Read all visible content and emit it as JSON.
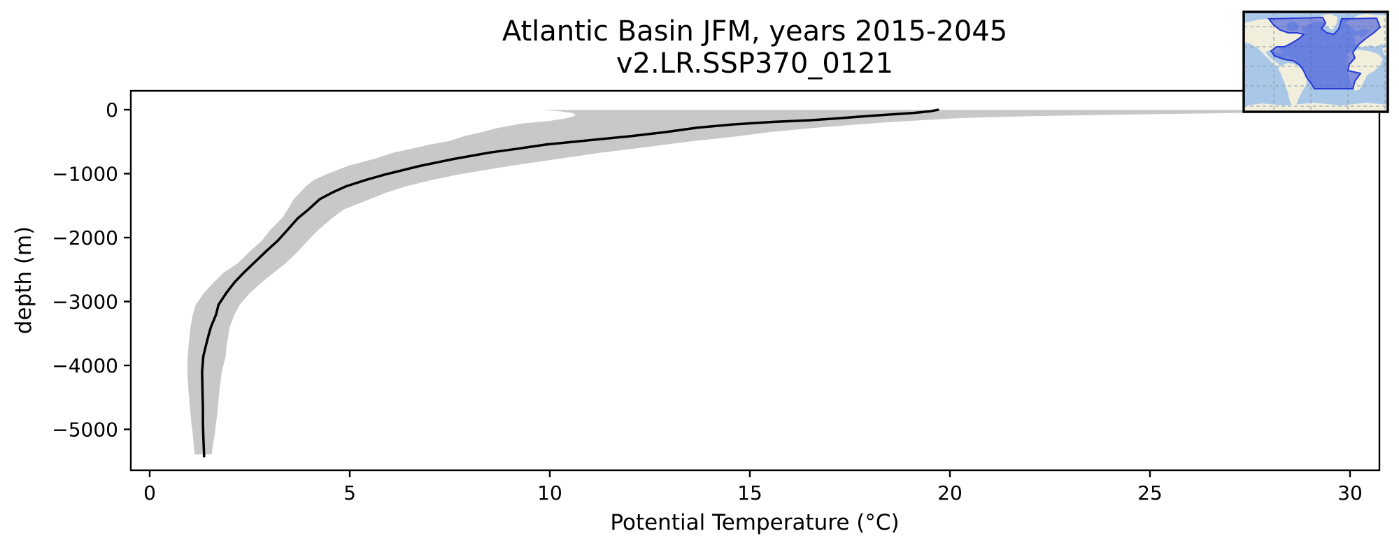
{
  "figure": {
    "title_line1": "Atlantic Basin JFM, years 2015-2045",
    "title_line2": "v2.LR.SSP370_0121"
  },
  "axes": {
    "x": {
      "label": "Potential Temperature (°C)",
      "tick_values": [
        0,
        5,
        10,
        15,
        20,
        25,
        30
      ],
      "tick_labels": [
        "0",
        "5",
        "10",
        "15",
        "20",
        "25",
        "30"
      ],
      "range": [
        -0.5,
        30.73
      ]
    },
    "y": {
      "label": "depth (m)",
      "tick_values": [
        0,
        -1000,
        -2000,
        -3000,
        -4000,
        -5000
      ],
      "tick_labels": [
        "0",
        "−1000",
        "−2000",
        "−3000",
        "−4000",
        "−5000"
      ],
      "range": [
        -5640,
        295
      ]
    }
  },
  "chart_data": {
    "type": "line",
    "title": "Atlantic Basin JFM, years 2015-2045",
    "subtitle": "v2.LR.SSP370_0121",
    "xlabel": "Potential Temperature (°C)",
    "ylabel": "depth (m)",
    "xlim": [
      -0.5,
      30.73
    ],
    "ylim": [
      -5640,
      295
    ],
    "grid": false,
    "legend": "none",
    "series": [
      {
        "name": "basin-mean potential temperature profile",
        "color": "#000000",
        "line_width": 3.5,
        "depth_m": [
          -2,
          -25,
          -50,
          -75,
          -100,
          -135,
          -165,
          -190,
          -230,
          -280,
          -350,
          -415,
          -490,
          -545,
          -610,
          -670,
          -770,
          -880,
          -1015,
          -1100,
          -1200,
          -1300,
          -1400,
          -1560,
          -1700,
          -1890,
          -2050,
          -2220,
          -2400,
          -2550,
          -2700,
          -2870,
          -3050,
          -3200,
          -3400,
          -3530,
          -3700,
          -3860,
          -4100,
          -4400,
          -4700,
          -4900,
          -5100,
          -5250,
          -5420
        ],
        "temperature_c": [
          19.7,
          19.5,
          19.1,
          18.5,
          17.9,
          17.2,
          16.5,
          15.6,
          14.6,
          13.7,
          12.9,
          12.0,
          10.8,
          9.9,
          9.2,
          8.5,
          7.6,
          6.75,
          5.87,
          5.4,
          4.9,
          4.55,
          4.25,
          3.97,
          3.7,
          3.43,
          3.2,
          2.9,
          2.6,
          2.35,
          2.12,
          1.91,
          1.72,
          1.66,
          1.53,
          1.47,
          1.4,
          1.34,
          1.31,
          1.32,
          1.33,
          1.33,
          1.34,
          1.35,
          1.36
        ]
      }
    ],
    "band": {
      "name": "min-max spread across basin",
      "color": "#c8c8c8",
      "depth_m": [
        -2,
        -25,
        -50,
        -75,
        -100,
        -130,
        -175,
        -215,
        -285,
        -350,
        -415,
        -490,
        -545,
        -610,
        -670,
        -770,
        -880,
        -1015,
        -1100,
        -1200,
        -1300,
        -1400,
        -1560,
        -1700,
        -1890,
        -2050,
        -2220,
        -2400,
        -2550,
        -2700,
        -2870,
        -3050,
        -3200,
        -3400,
        -3700,
        -3860,
        -4100,
        -4400,
        -4700,
        -4900,
        -5100,
        -5250,
        -5390
      ],
      "temp_min_c": [
        9.8,
        10.25,
        10.55,
        10.65,
        10.6,
        10.45,
        10.0,
        9.3,
        8.7,
        8.3,
        7.85,
        7.5,
        7.0,
        6.55,
        6.1,
        5.6,
        4.95,
        4.4,
        4.1,
        3.9,
        3.75,
        3.6,
        3.45,
        3.3,
        3.0,
        2.8,
        2.5,
        2.2,
        1.85,
        1.6,
        1.35,
        1.15,
        1.08,
        1.02,
        0.97,
        0.95,
        0.94,
        0.97,
        1.01,
        1.04,
        1.08,
        1.1,
        1.12
      ],
      "temp_max_c": [
        30.4,
        29.6,
        27.3,
        24.5,
        22.0,
        20.3,
        19.0,
        18.0,
        16.6,
        15.5,
        14.7,
        13.6,
        12.9,
        12.1,
        11.3,
        10.2,
        9.0,
        7.7,
        7.05,
        6.4,
        5.9,
        5.5,
        4.85,
        4.55,
        4.2,
        3.95,
        3.7,
        3.4,
        3.1,
        2.8,
        2.5,
        2.25,
        2.12,
        2.0,
        1.92,
        1.9,
        1.8,
        1.74,
        1.7,
        1.66,
        1.62,
        1.58,
        1.55
      ]
    }
  },
  "inset_map": {
    "name": "Atlantic Basin region locator map",
    "ocean_color": "#a9c8e8",
    "land_color": "#f1eedc",
    "region_fill": "#3d52d8",
    "region_opacity": 0.6,
    "region_stroke": "#2639d6",
    "grid_color": "#909aa6",
    "border_color": "#000000"
  }
}
